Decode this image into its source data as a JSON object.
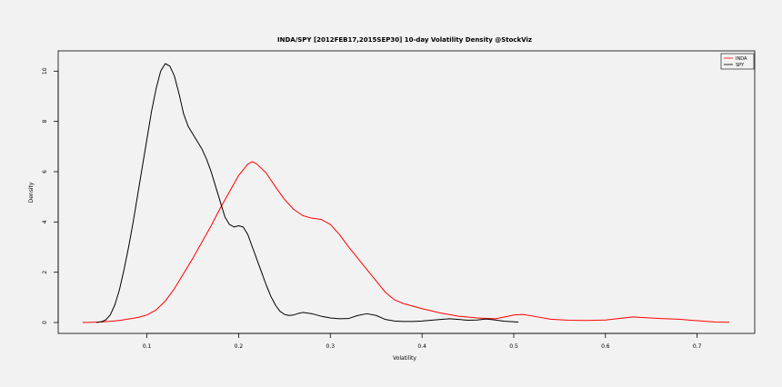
{
  "chart_data": {
    "type": "line",
    "title": "INDA/SPY [2012FEB17,2015SEP30] 10-day Volatility Density @StockViz",
    "xlabel": "Volatility",
    "ylabel": "Density",
    "xlim": [
      0.03,
      0.735
    ],
    "ylim": [
      0,
      10.3
    ],
    "x_ticks": [
      0.1,
      0.2,
      0.3,
      0.4,
      0.5,
      0.6,
      0.7
    ],
    "x_tick_labels": [
      "0.1",
      "0.2",
      "0.3",
      "0.4",
      "0.5",
      "0.6",
      "0.7"
    ],
    "y_ticks": [
      0,
      2,
      4,
      6,
      8,
      10
    ],
    "y_tick_labels": [
      "0",
      "2",
      "4",
      "6",
      "8",
      "10"
    ],
    "grid": false,
    "legend_position": "top-right",
    "series": [
      {
        "name": "INDA",
        "color": "#ff0000",
        "points": [
          [
            0.03,
            0
          ],
          [
            0.05,
            0.02
          ],
          [
            0.07,
            0.08
          ],
          [
            0.09,
            0.2
          ],
          [
            0.1,
            0.3
          ],
          [
            0.11,
            0.5
          ],
          [
            0.12,
            0.85
          ],
          [
            0.13,
            1.35
          ],
          [
            0.14,
            1.95
          ],
          [
            0.15,
            2.55
          ],
          [
            0.16,
            3.2
          ],
          [
            0.17,
            3.85
          ],
          [
            0.18,
            4.55
          ],
          [
            0.19,
            5.2
          ],
          [
            0.2,
            5.85
          ],
          [
            0.21,
            6.3
          ],
          [
            0.215,
            6.4
          ],
          [
            0.22,
            6.3
          ],
          [
            0.23,
            5.95
          ],
          [
            0.24,
            5.4
          ],
          [
            0.25,
            4.9
          ],
          [
            0.26,
            4.5
          ],
          [
            0.27,
            4.25
          ],
          [
            0.28,
            4.15
          ],
          [
            0.29,
            4.1
          ],
          [
            0.3,
            3.9
          ],
          [
            0.31,
            3.5
          ],
          [
            0.32,
            3.0
          ],
          [
            0.33,
            2.55
          ],
          [
            0.34,
            2.1
          ],
          [
            0.35,
            1.65
          ],
          [
            0.36,
            1.2
          ],
          [
            0.37,
            0.9
          ],
          [
            0.38,
            0.75
          ],
          [
            0.39,
            0.65
          ],
          [
            0.4,
            0.55
          ],
          [
            0.42,
            0.38
          ],
          [
            0.44,
            0.25
          ],
          [
            0.46,
            0.18
          ],
          [
            0.48,
            0.15
          ],
          [
            0.49,
            0.22
          ],
          [
            0.5,
            0.3
          ],
          [
            0.51,
            0.32
          ],
          [
            0.52,
            0.26
          ],
          [
            0.54,
            0.13
          ],
          [
            0.56,
            0.09
          ],
          [
            0.58,
            0.08
          ],
          [
            0.6,
            0.1
          ],
          [
            0.62,
            0.18
          ],
          [
            0.63,
            0.22
          ],
          [
            0.64,
            0.2
          ],
          [
            0.66,
            0.16
          ],
          [
            0.68,
            0.13
          ],
          [
            0.7,
            0.07
          ],
          [
            0.72,
            0.02
          ],
          [
            0.735,
            0.01
          ]
        ]
      },
      {
        "name": "SPY",
        "color": "#000000",
        "points": [
          [
            0.045,
            0
          ],
          [
            0.05,
            0.03
          ],
          [
            0.055,
            0.1
          ],
          [
            0.06,
            0.3
          ],
          [
            0.065,
            0.7
          ],
          [
            0.07,
            1.3
          ],
          [
            0.075,
            2.1
          ],
          [
            0.08,
            3.0
          ],
          [
            0.085,
            4.0
          ],
          [
            0.09,
            5.1
          ],
          [
            0.095,
            6.2
          ],
          [
            0.1,
            7.3
          ],
          [
            0.105,
            8.4
          ],
          [
            0.11,
            9.3
          ],
          [
            0.115,
            10.0
          ],
          [
            0.12,
            10.3
          ],
          [
            0.125,
            10.2
          ],
          [
            0.13,
            9.8
          ],
          [
            0.135,
            9.1
          ],
          [
            0.14,
            8.3
          ],
          [
            0.145,
            7.8
          ],
          [
            0.15,
            7.5
          ],
          [
            0.155,
            7.2
          ],
          [
            0.16,
            6.9
          ],
          [
            0.165,
            6.5
          ],
          [
            0.17,
            6.0
          ],
          [
            0.175,
            5.4
          ],
          [
            0.18,
            4.8
          ],
          [
            0.185,
            4.2
          ],
          [
            0.19,
            3.9
          ],
          [
            0.195,
            3.8
          ],
          [
            0.2,
            3.85
          ],
          [
            0.205,
            3.8
          ],
          [
            0.21,
            3.5
          ],
          [
            0.215,
            3.0
          ],
          [
            0.22,
            2.5
          ],
          [
            0.225,
            2.0
          ],
          [
            0.23,
            1.5
          ],
          [
            0.235,
            1.05
          ],
          [
            0.24,
            0.7
          ],
          [
            0.245,
            0.45
          ],
          [
            0.25,
            0.32
          ],
          [
            0.255,
            0.28
          ],
          [
            0.26,
            0.3
          ],
          [
            0.265,
            0.36
          ],
          [
            0.27,
            0.4
          ],
          [
            0.28,
            0.35
          ],
          [
            0.29,
            0.25
          ],
          [
            0.3,
            0.18
          ],
          [
            0.31,
            0.15
          ],
          [
            0.32,
            0.16
          ],
          [
            0.33,
            0.28
          ],
          [
            0.34,
            0.35
          ],
          [
            0.35,
            0.28
          ],
          [
            0.36,
            0.12
          ],
          [
            0.37,
            0.06
          ],
          [
            0.38,
            0.04
          ],
          [
            0.39,
            0.04
          ],
          [
            0.4,
            0.06
          ],
          [
            0.41,
            0.09
          ],
          [
            0.42,
            0.12
          ],
          [
            0.43,
            0.15
          ],
          [
            0.44,
            0.12
          ],
          [
            0.45,
            0.09
          ],
          [
            0.46,
            0.1
          ],
          [
            0.47,
            0.14
          ],
          [
            0.48,
            0.1
          ],
          [
            0.49,
            0.05
          ],
          [
            0.505,
            0.02
          ]
        ]
      }
    ]
  }
}
